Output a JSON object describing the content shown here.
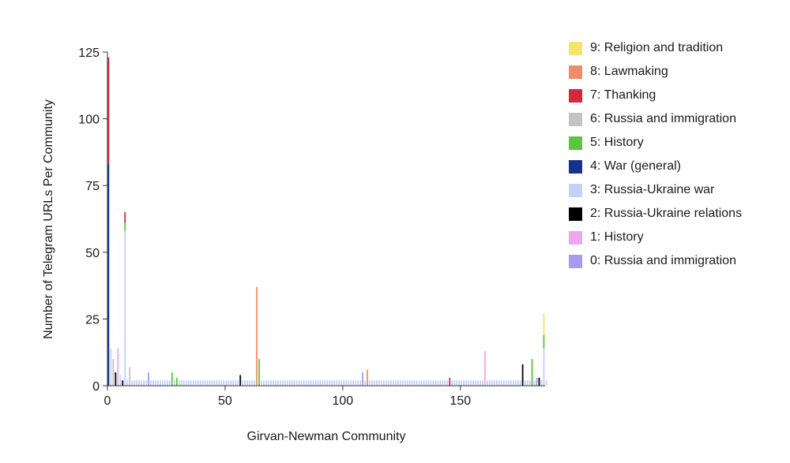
{
  "chart_data": {
    "type": "bar",
    "stacked": true,
    "title": "",
    "xlabel": "Girvan-Newman Community",
    "ylabel": "Number of Telegram URLs Per Community",
    "xlim": [
      0,
      186
    ],
    "ylim": [
      0,
      125
    ],
    "xticks": [
      0,
      50,
      100,
      150
    ],
    "yticks": [
      0,
      25,
      50,
      75,
      100,
      125
    ],
    "grid": false,
    "legend_position": "right",
    "series": [
      {
        "name": "9: Religion and tradition",
        "color": "#f7e36b"
      },
      {
        "name": "8: Lawmaking",
        "color": "#f28c68"
      },
      {
        "name": "7: Thanking",
        "color": "#d4283c"
      },
      {
        "name": "6: Russia and immigration",
        "color": "#c3c3c3"
      },
      {
        "name": "5: History",
        "color": "#5cc43f"
      },
      {
        "name": "4: War (general)",
        "color": "#15338a"
      },
      {
        "name": "3: Russia-Ukraine war",
        "color": "#c2d1f7"
      },
      {
        "name": "2: Russia-Ukraine relations",
        "color": "#000000"
      },
      {
        "name": "1: History",
        "color": "#f0a6ef"
      },
      {
        "name": "0: Russia and immigration",
        "color": "#a69bf0"
      }
    ],
    "bars": [
      {
        "x": 0,
        "stack": [
          {
            "topic": 4,
            "value": 83
          },
          {
            "topic": 7,
            "value": 40
          }
        ]
      },
      {
        "x": 1,
        "stack": [
          {
            "topic": 3,
            "value": 14
          }
        ]
      },
      {
        "x": 2,
        "stack": [
          {
            "topic": 6,
            "value": 10
          }
        ]
      },
      {
        "x": 3,
        "stack": [
          {
            "topic": 2,
            "value": 5
          }
        ]
      },
      {
        "x": 4,
        "stack": [
          {
            "topic": 1,
            "value": 14
          }
        ]
      },
      {
        "x": 5,
        "stack": [
          {
            "topic": 3,
            "value": 4
          }
        ]
      },
      {
        "x": 6,
        "stack": [
          {
            "topic": 2,
            "value": 2
          }
        ]
      },
      {
        "x": 7,
        "stack": [
          {
            "topic": 3,
            "value": 58
          },
          {
            "topic": 5,
            "value": 3
          },
          {
            "topic": 7,
            "value": 4
          }
        ]
      },
      {
        "x": 9,
        "stack": [
          {
            "topic": 6,
            "value": 7
          }
        ]
      },
      {
        "x": 17,
        "stack": [
          {
            "topic": 0,
            "value": 5
          }
        ]
      },
      {
        "x": 27,
        "stack": [
          {
            "topic": 5,
            "value": 5
          }
        ]
      },
      {
        "x": 29,
        "stack": [
          {
            "topic": 5,
            "value": 3
          }
        ]
      },
      {
        "x": 56,
        "stack": [
          {
            "topic": 2,
            "value": 4
          }
        ]
      },
      {
        "x": 63,
        "stack": [
          {
            "topic": 8,
            "value": 37
          }
        ]
      },
      {
        "x": 64,
        "stack": [
          {
            "topic": 5,
            "value": 10
          }
        ]
      },
      {
        "x": 108,
        "stack": [
          {
            "topic": 0,
            "value": 5
          }
        ]
      },
      {
        "x": 110,
        "stack": [
          {
            "topic": 8,
            "value": 6
          }
        ]
      },
      {
        "x": 145,
        "stack": [
          {
            "topic": 7,
            "value": 3
          }
        ]
      },
      {
        "x": 160,
        "stack": [
          {
            "topic": 1,
            "value": 13
          }
        ]
      },
      {
        "x": 176,
        "stack": [
          {
            "topic": 2,
            "value": 8
          }
        ]
      },
      {
        "x": 180,
        "stack": [
          {
            "topic": 5,
            "value": 10
          }
        ]
      },
      {
        "x": 182,
        "stack": [
          {
            "topic": 0,
            "value": 3
          }
        ]
      },
      {
        "x": 183,
        "stack": [
          {
            "topic": 2,
            "value": 3
          }
        ]
      },
      {
        "x": 185,
        "stack": [
          {
            "topic": 3,
            "value": 14
          },
          {
            "topic": 5,
            "value": 5
          },
          {
            "topic": 9,
            "value": 8
          }
        ]
      }
    ],
    "baseline_value": 2,
    "baseline_topic": 3
  }
}
